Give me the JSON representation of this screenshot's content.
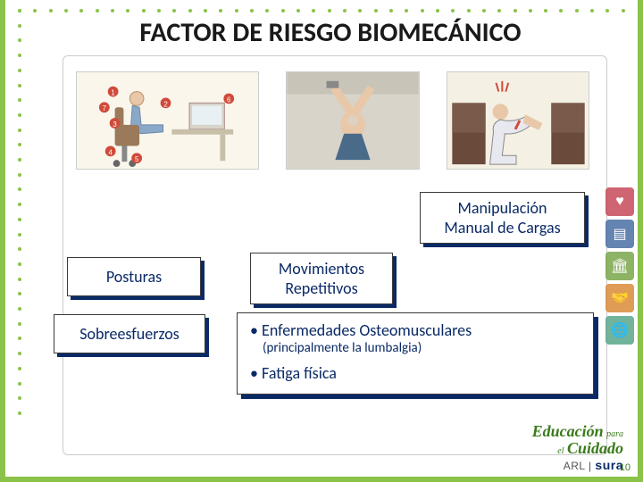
{
  "title": "FACTOR DE RIESGO BIOMECÁNICO",
  "labels": {
    "manipulacion": "Manipulación Manual de Cargas",
    "posturas": "Posturas",
    "movimientos": "Movimientos Repetitivos",
    "sobreesfuerzos": "Sobreesfuerzos"
  },
  "bullets": {
    "b1": "• Enfermedades Osteomusculares",
    "b1_sub": "(principalmente la lumbalgia)",
    "b2": "• Fatiga   física"
  },
  "logo": {
    "line1a": "Educación",
    "line1b": "para",
    "line1c": "el",
    "line2": "Cuidado",
    "sura_prefix": "ARL |",
    "sura": "sura"
  },
  "page_number": "10",
  "style": {
    "accent_green": "#8bc34a",
    "box_shadow_color": "#0a2a66",
    "text_navy": "#0a2a66",
    "title_color": "#1a1a1a",
    "title_fontsize": 30,
    "label_fontsize": 18,
    "bullet_fontsize": 18,
    "sub_fontsize": 15
  },
  "side_icons": [
    {
      "name": "heart-icon",
      "glyph": "♥",
      "bg": "#c74b5a"
    },
    {
      "name": "layers-icon",
      "glyph": "▤",
      "bg": "#4a6fa5"
    },
    {
      "name": "building-icon",
      "glyph": "🏛",
      "bg": "#7aa64a"
    },
    {
      "name": "hands-icon",
      "glyph": "🤝",
      "bg": "#d98b3a"
    },
    {
      "name": "globe-icon",
      "glyph": "🌐",
      "bg": "#5aa68a"
    }
  ],
  "images": [
    {
      "name": "ergonomic-posture-diagram",
      "desc": "seated office posture with numbered callouts"
    },
    {
      "name": "repetitive-motion-photo",
      "desc": "person reaching overhead painting"
    },
    {
      "name": "manual-lifting-cartoon",
      "desc": "worker bending to lift boxes, back strain"
    }
  ]
}
